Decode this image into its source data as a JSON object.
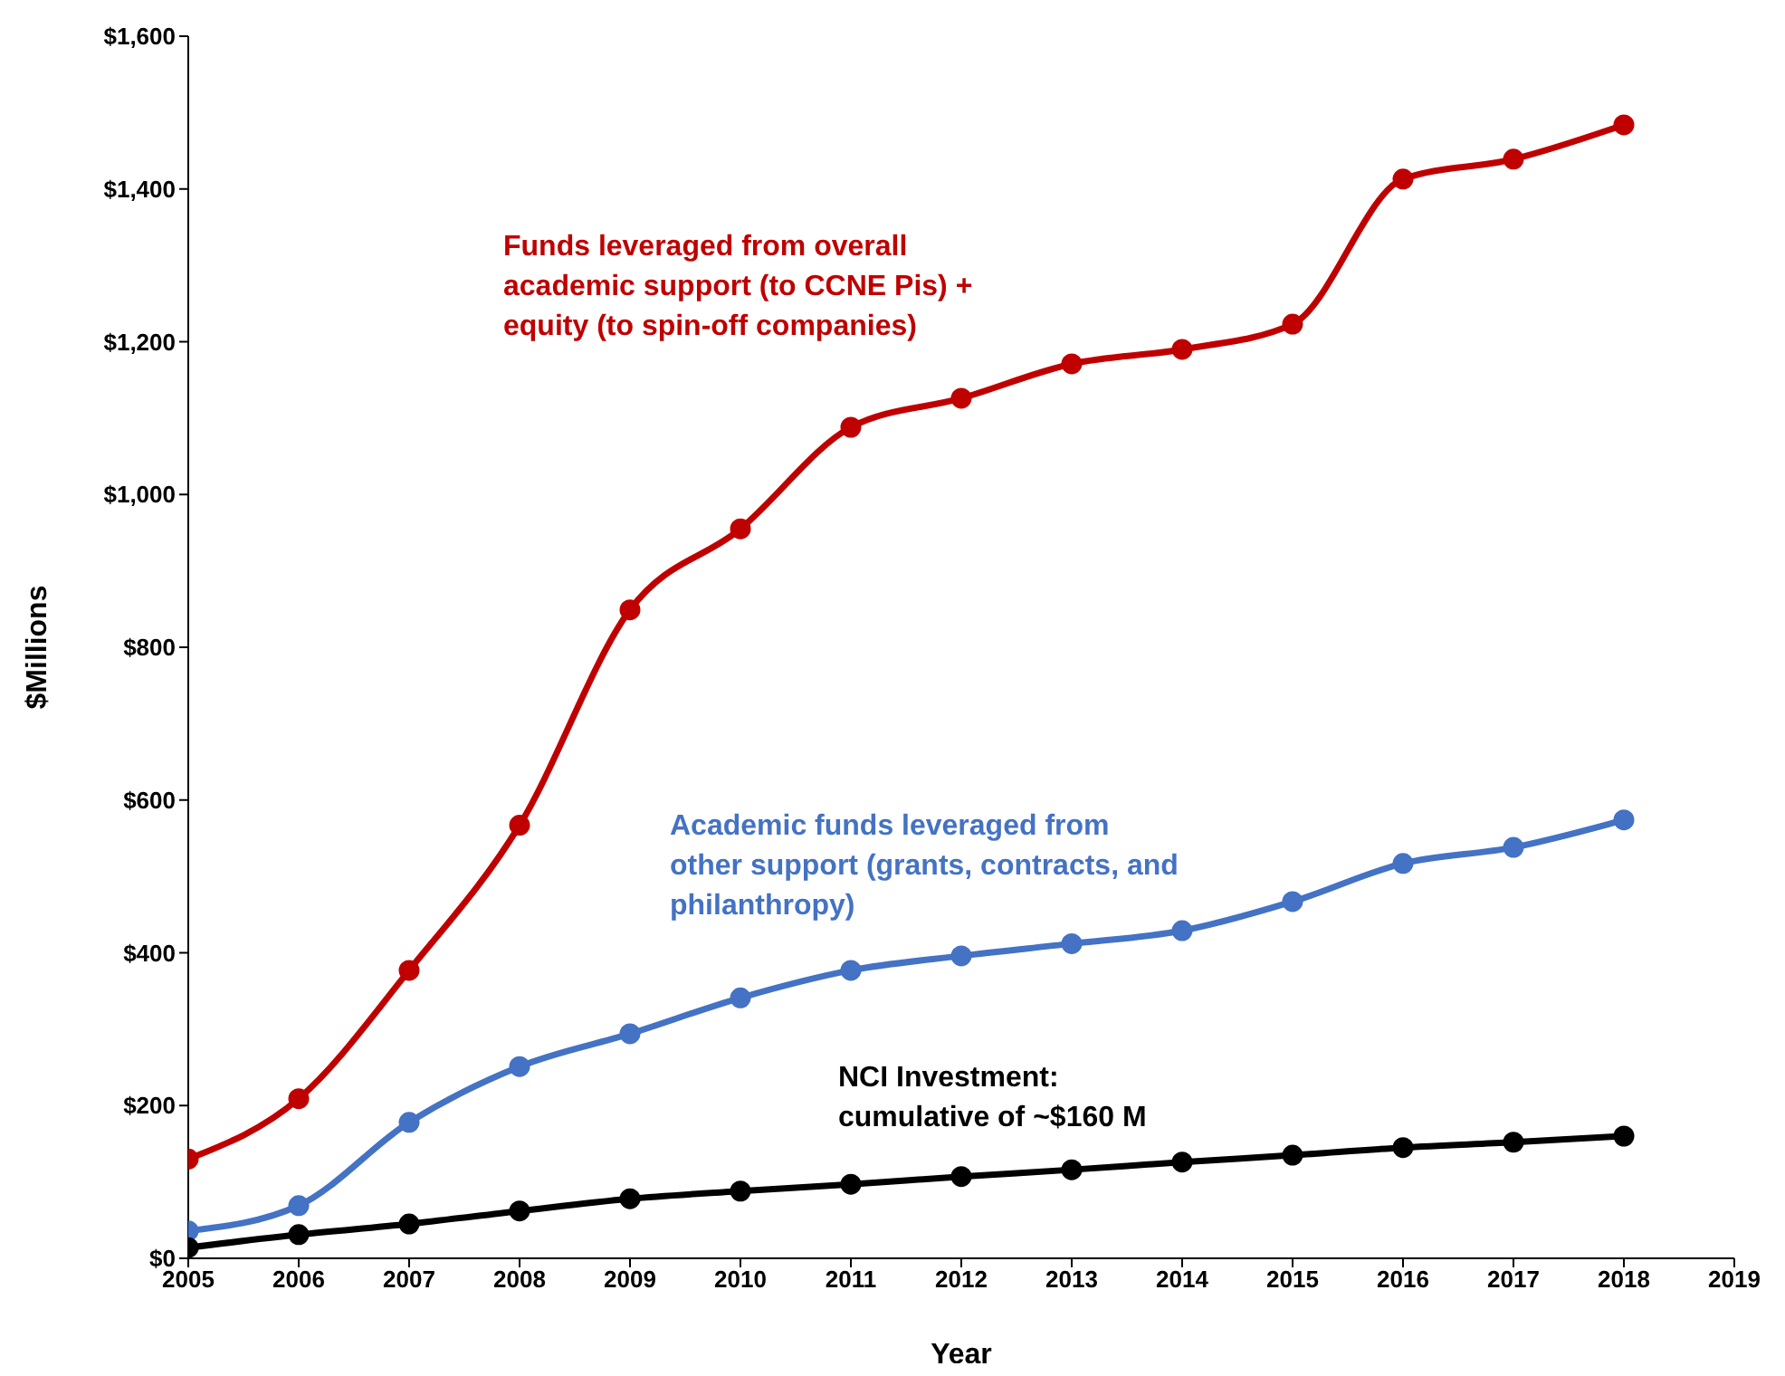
{
  "chart_data": {
    "type": "line",
    "xlabel": "Year",
    "ylabel": "$Millions",
    "x": [
      2005,
      2006,
      2007,
      2008,
      2009,
      2010,
      2011,
      2012,
      2013,
      2014,
      2015,
      2016,
      2017,
      2018
    ],
    "series": [
      {
        "name": "Funds leveraged from overall academic support (to CCNE Pis) + equity (to spin-off companies)",
        "color": "#c00000",
        "values": [
          130,
          209,
          377,
          567,
          849,
          955,
          1088,
          1126,
          1171,
          1190,
          1223,
          1413,
          1439,
          1484
        ]
      },
      {
        "name": "Academic funds leveraged from other support (grants, contracts, and philanthropy)",
        "color": "#4472c4",
        "values": [
          36,
          69,
          178,
          251,
          294,
          341,
          377,
          396,
          412,
          429,
          467,
          517,
          538,
          574
        ]
      },
      {
        "name": "NCI Investment: cumulative of ~$160 M",
        "color": "#000000",
        "values": [
          14,
          31,
          45,
          62,
          78,
          88,
          97,
          107,
          116,
          126,
          135,
          145,
          152,
          160
        ]
      }
    ],
    "xlim": [
      2005,
      2019
    ],
    "xticks": [
      2005,
      2006,
      2007,
      2008,
      2009,
      2010,
      2011,
      2012,
      2013,
      2014,
      2015,
      2016,
      2017,
      2018,
      2019
    ],
    "ylim": [
      0,
      1600
    ],
    "yticks": [
      {
        "value": 0,
        "label": "$0"
      },
      {
        "value": 200,
        "label": "$200"
      },
      {
        "value": 400,
        "label": "$400"
      },
      {
        "value": 600,
        "label": "$600"
      },
      {
        "value": 800,
        "label": "$800"
      },
      {
        "value": 1000,
        "label": "$1,000"
      },
      {
        "value": 1200,
        "label": "$1,200"
      },
      {
        "value": 1400,
        "label": "$1,400"
      },
      {
        "value": 1600,
        "label": "$1,600"
      }
    ],
    "grid": false,
    "legend": false,
    "marker": "circle",
    "line_style": "solid"
  }
}
